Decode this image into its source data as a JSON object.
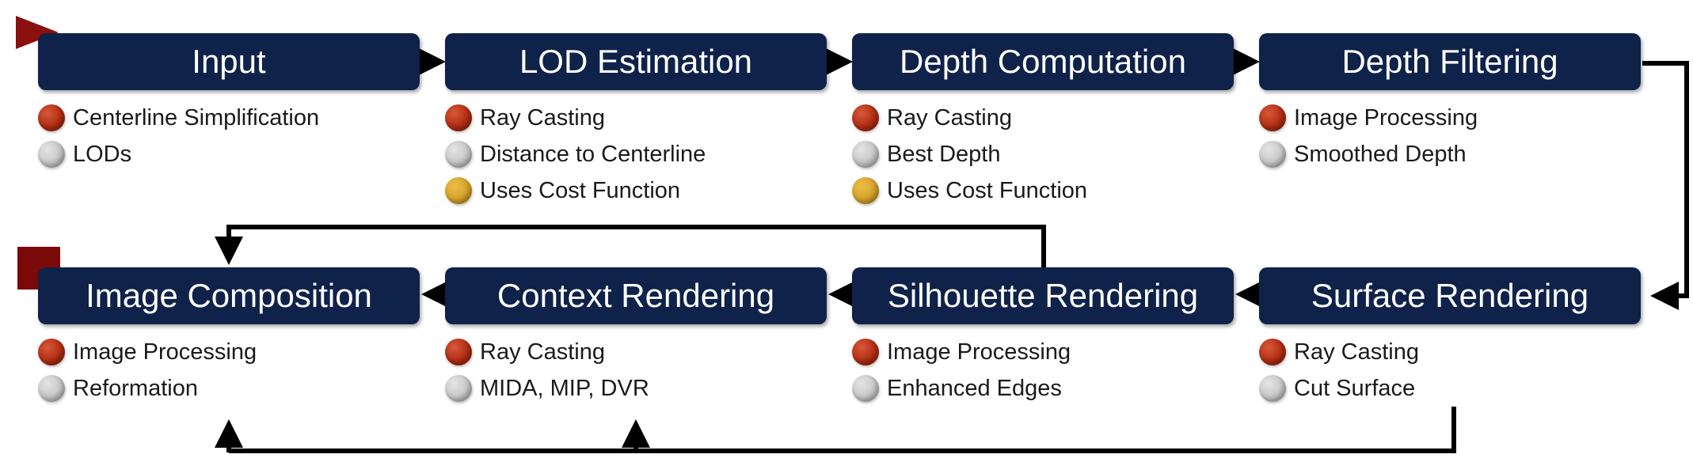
{
  "stages": [
    {
      "title": "Input",
      "items": [
        {
          "text": "Centerline Simplification",
          "marker": "red"
        },
        {
          "text": "LODs",
          "marker": "grey"
        }
      ]
    },
    {
      "title": "LOD Estimation",
      "items": [
        {
          "text": "Ray Casting",
          "marker": "red"
        },
        {
          "text": "Distance to Centerline",
          "marker": "grey"
        },
        {
          "text": "Uses Cost Function",
          "marker": "gold"
        }
      ]
    },
    {
      "title": "Depth Computation",
      "items": [
        {
          "text": "Ray Casting",
          "marker": "red"
        },
        {
          "text": "Best Depth",
          "marker": "grey"
        },
        {
          "text": "Uses Cost Function",
          "marker": "gold"
        }
      ]
    },
    {
      "title": "Depth Filtering",
      "items": [
        {
          "text": "Image Processing",
          "marker": "red"
        },
        {
          "text": "Smoothed Depth",
          "marker": "grey"
        }
      ]
    },
    {
      "title": "Image Composition",
      "items": [
        {
          "text": "Image Processing",
          "marker": "red"
        },
        {
          "text": "Reformation",
          "marker": "grey"
        }
      ]
    },
    {
      "title": "Context Rendering",
      "items": [
        {
          "text": "Ray Casting",
          "marker": "red"
        },
        {
          "text": "MIDA, MIP, DVR",
          "marker": "grey"
        }
      ]
    },
    {
      "title": "Silhouette Rendering",
      "items": [
        {
          "text": "Image Processing",
          "marker": "red"
        },
        {
          "text": "Enhanced Edges",
          "marker": "grey"
        }
      ]
    },
    {
      "title": "Surface Rendering",
      "items": [
        {
          "text": "Ray Casting",
          "marker": "red"
        },
        {
          "text": "Cut Surface",
          "marker": "grey"
        }
      ]
    }
  ],
  "colors": {
    "box": "#0f2249",
    "arrow": "#000000",
    "start_marker": "#8b1010",
    "end_marker": "#7a0a0a",
    "dot_red": "#b02d12",
    "dot_grey": "#c4c4c4",
    "dot_gold": "#d2a028"
  },
  "icons": {
    "start": "start-triangle-icon",
    "end": "end-square-icon",
    "bullets": [
      "red-dot-icon",
      "grey-dot-icon",
      "gold-dot-icon"
    ]
  }
}
